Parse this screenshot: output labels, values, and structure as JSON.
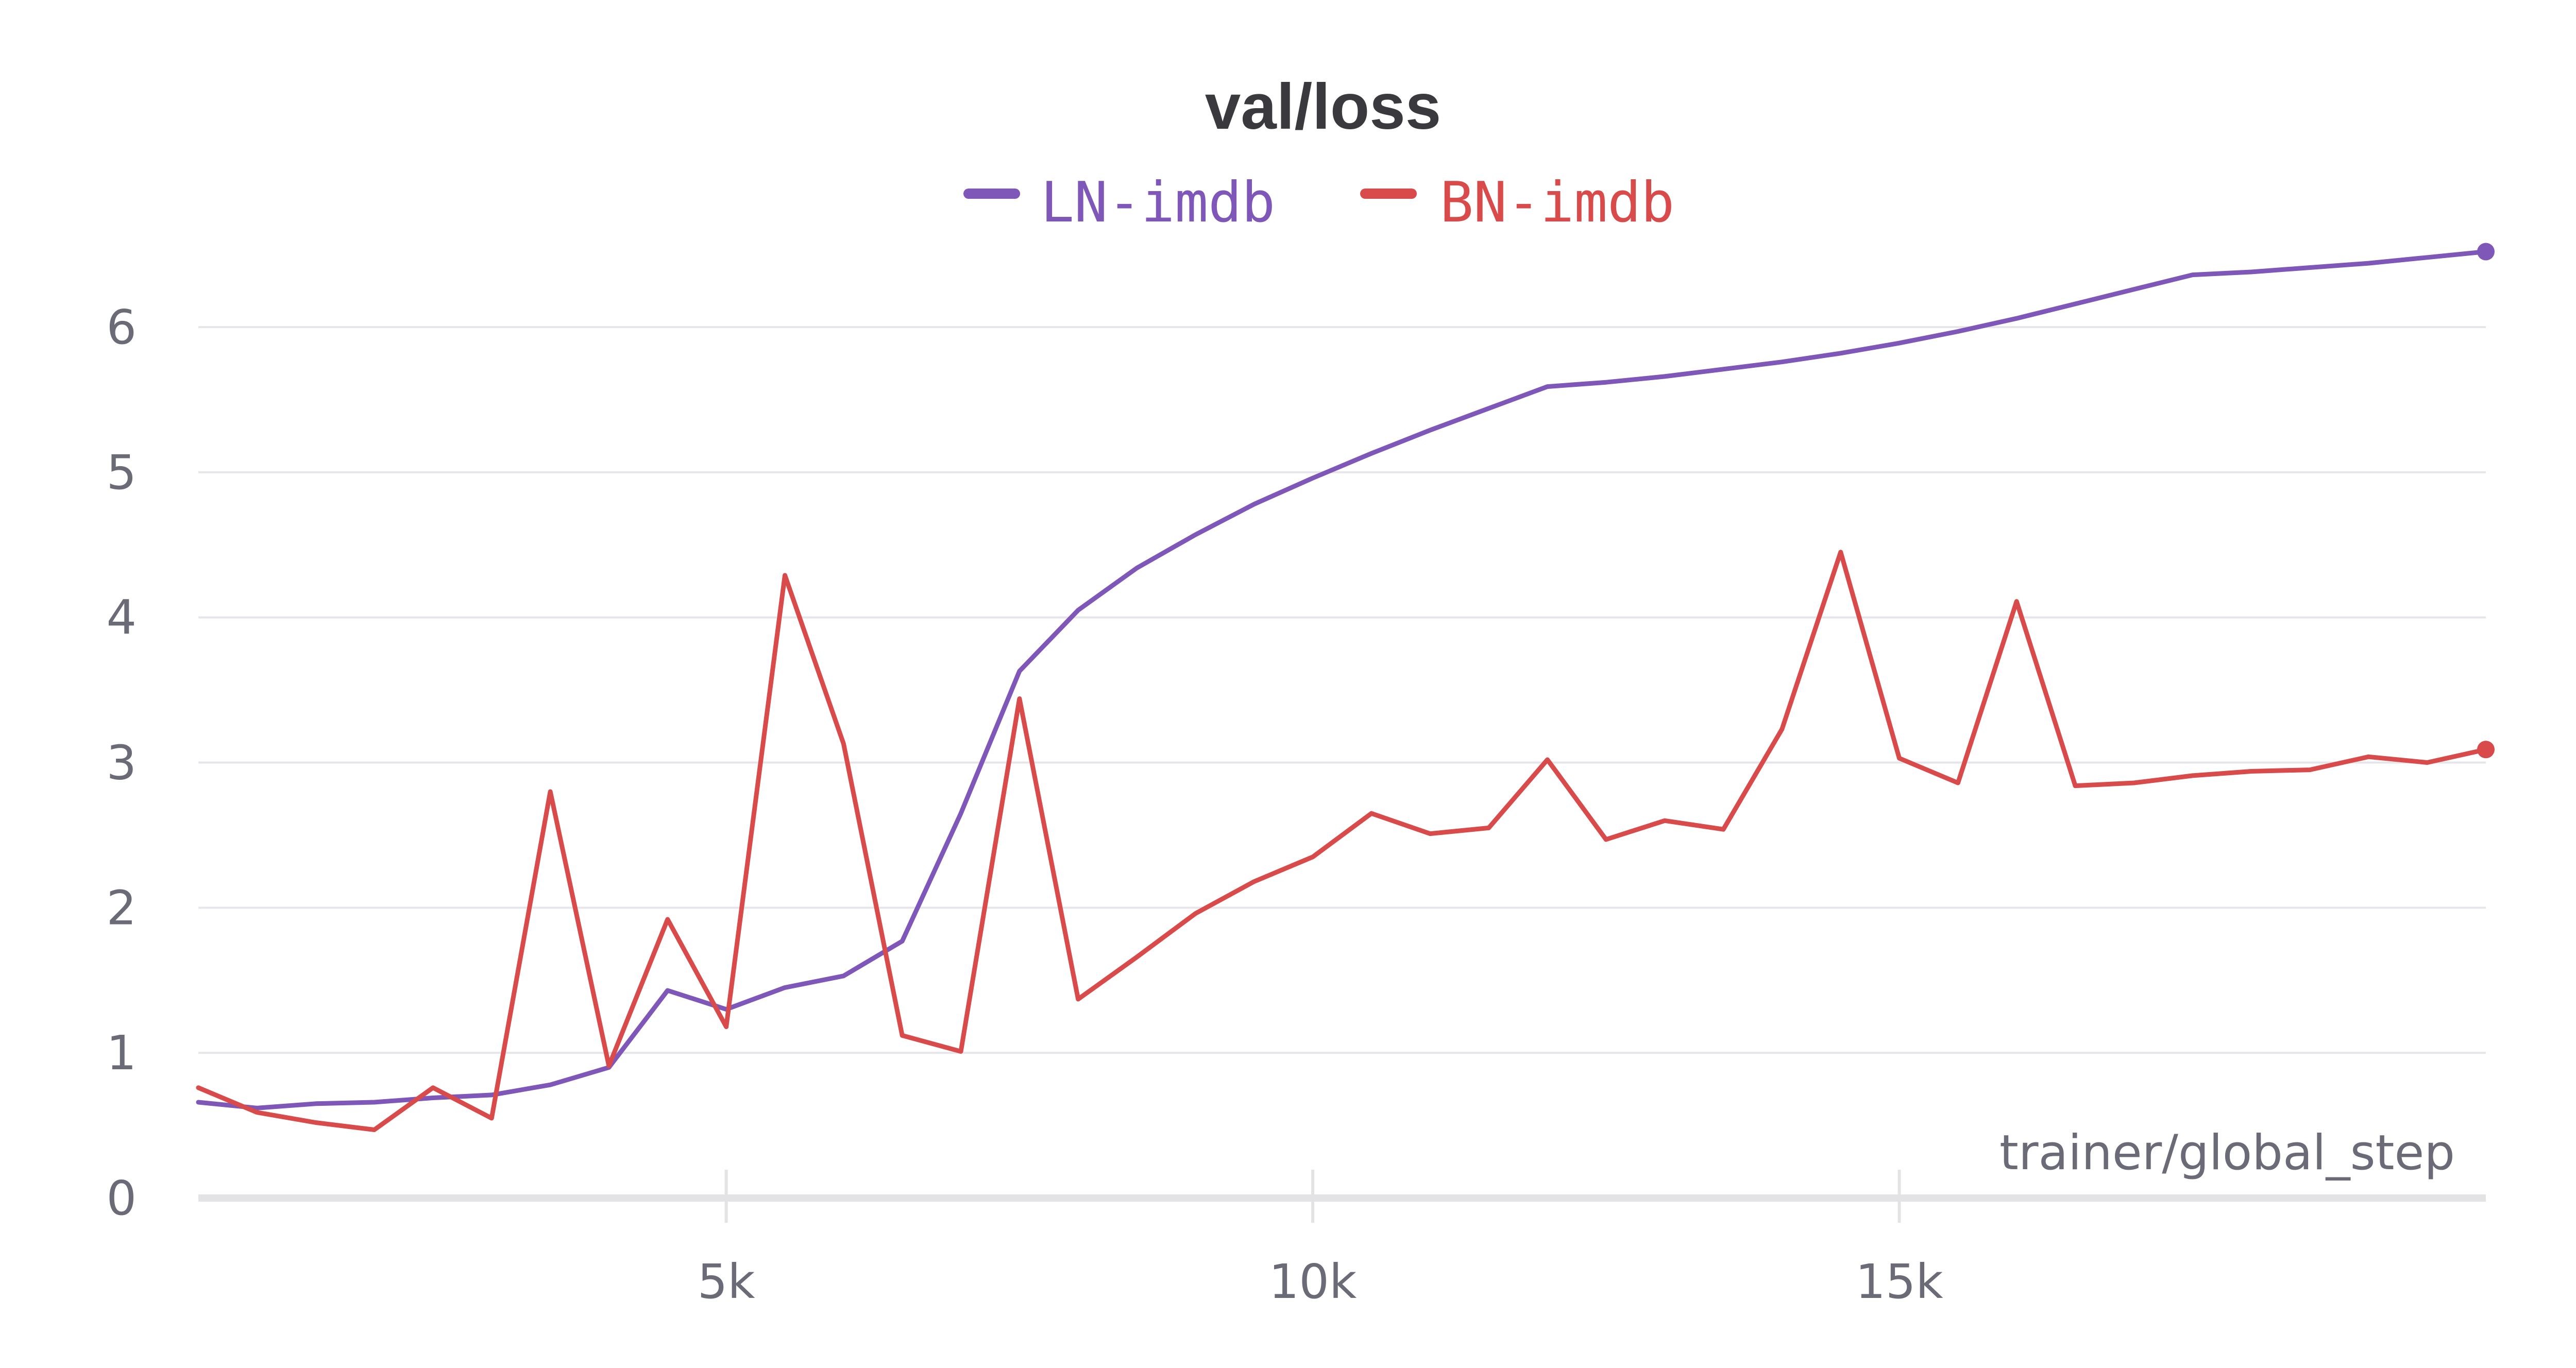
{
  "chart_data": {
    "type": "line",
    "title": "val/loss",
    "xlabel": "trainer/global_step",
    "ylabel": "",
    "xlim": [
      500,
      20000
    ],
    "ylim": [
      0,
      6.6
    ],
    "grid": true,
    "legend_position": "top-center",
    "x_ticks": [
      {
        "value": 5000,
        "label": "5k"
      },
      {
        "value": 10000,
        "label": "10k"
      },
      {
        "value": 15000,
        "label": "15k"
      }
    ],
    "y_ticks": [
      {
        "value": 0,
        "label": "0"
      },
      {
        "value": 1,
        "label": "1"
      },
      {
        "value": 2,
        "label": "2"
      },
      {
        "value": 3,
        "label": "3"
      },
      {
        "value": 4,
        "label": "4"
      },
      {
        "value": 5,
        "label": "5"
      },
      {
        "value": 6,
        "label": "6"
      }
    ],
    "series": [
      {
        "name": "LN-imdb",
        "color": "#7e57b8",
        "points": [
          [
            500,
            0.66
          ],
          [
            1000,
            0.62
          ],
          [
            1500,
            0.65
          ],
          [
            2000,
            0.66
          ],
          [
            2500,
            0.69
          ],
          [
            3000,
            0.71
          ],
          [
            3500,
            0.78
          ],
          [
            4000,
            0.9
          ],
          [
            4500,
            1.43
          ],
          [
            5000,
            1.3
          ],
          [
            5500,
            1.45
          ],
          [
            6000,
            1.53
          ],
          [
            6500,
            1.77
          ],
          [
            7000,
            2.65
          ],
          [
            7500,
            3.63
          ],
          [
            8000,
            4.05
          ],
          [
            8500,
            4.34
          ],
          [
            9000,
            4.57
          ],
          [
            9500,
            4.78
          ],
          [
            10000,
            4.96
          ],
          [
            10500,
            5.13
          ],
          [
            11000,
            5.29
          ],
          [
            11500,
            5.44
          ],
          [
            12000,
            5.59
          ],
          [
            12500,
            5.62
          ],
          [
            13000,
            5.66
          ],
          [
            13500,
            5.71
          ],
          [
            14000,
            5.76
          ],
          [
            14500,
            5.82
          ],
          [
            15000,
            5.89
          ],
          [
            15500,
            5.97
          ],
          [
            16000,
            6.06
          ],
          [
            16500,
            6.16
          ],
          [
            17000,
            6.26
          ],
          [
            17500,
            6.36
          ],
          [
            18000,
            6.38
          ],
          [
            18500,
            6.41
          ],
          [
            19000,
            6.44
          ],
          [
            19500,
            6.48
          ],
          [
            20000,
            6.52
          ]
        ]
      },
      {
        "name": "BN-imdb",
        "color": "#d94b4b",
        "points": [
          [
            500,
            0.76
          ],
          [
            1000,
            0.59
          ],
          [
            1500,
            0.52
          ],
          [
            2000,
            0.47
          ],
          [
            2500,
            0.76
          ],
          [
            3000,
            0.55
          ],
          [
            3500,
            2.8
          ],
          [
            4000,
            0.91
          ],
          [
            4500,
            1.92
          ],
          [
            5000,
            1.18
          ],
          [
            5500,
            4.29
          ],
          [
            6000,
            3.13
          ],
          [
            6500,
            1.12
          ],
          [
            7000,
            1.01
          ],
          [
            7500,
            3.44
          ],
          [
            8000,
            1.37
          ],
          [
            8500,
            1.66
          ],
          [
            9000,
            1.96
          ],
          [
            9500,
            2.18
          ],
          [
            10000,
            2.35
          ],
          [
            10500,
            2.65
          ],
          [
            11000,
            2.51
          ],
          [
            11500,
            2.55
          ],
          [
            12000,
            3.02
          ],
          [
            12500,
            2.47
          ],
          [
            13000,
            2.6
          ],
          [
            13500,
            2.54
          ],
          [
            14000,
            3.23
          ],
          [
            14500,
            4.45
          ],
          [
            15000,
            3.03
          ],
          [
            15500,
            2.86
          ],
          [
            16000,
            4.11
          ],
          [
            16500,
            2.84
          ],
          [
            17000,
            2.86
          ],
          [
            17500,
            2.91
          ],
          [
            18000,
            2.94
          ],
          [
            18500,
            2.95
          ],
          [
            19000,
            3.04
          ],
          [
            19500,
            3.0
          ],
          [
            20000,
            3.09
          ]
        ]
      }
    ]
  }
}
